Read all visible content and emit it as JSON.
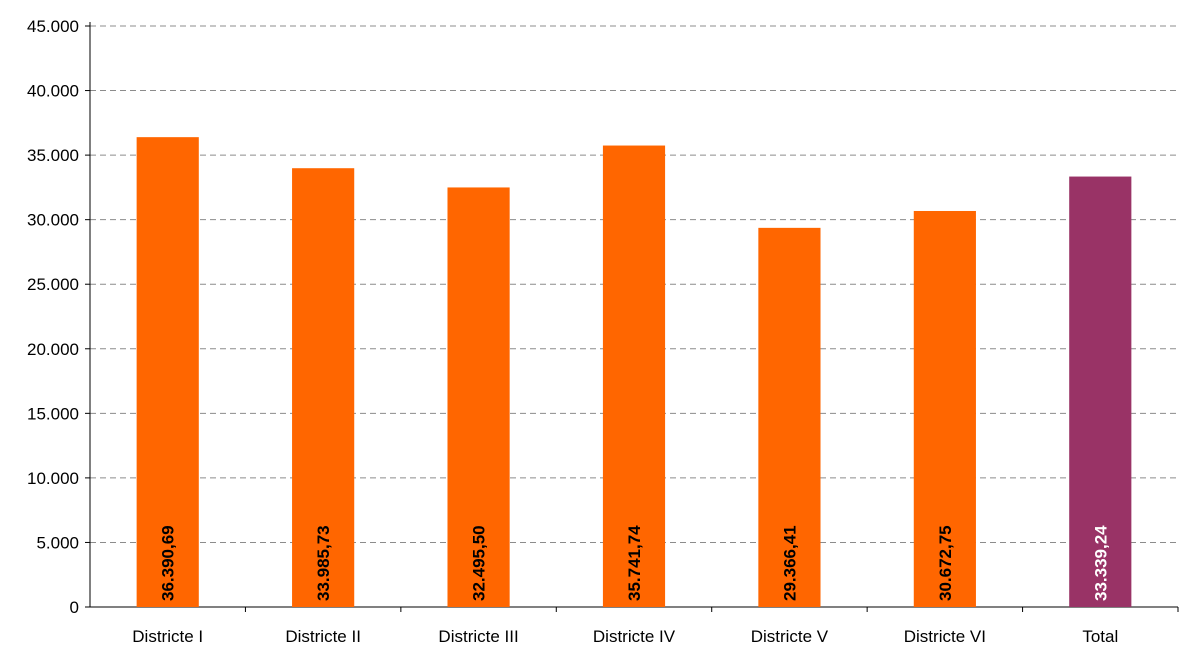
{
  "chart_data": {
    "type": "bar",
    "categories": [
      "Districte I",
      "Districte II",
      "Districte III",
      "Districte IV",
      "Districte V",
      "Districte VI",
      "Total"
    ],
    "values": [
      36390.69,
      33985.73,
      32495.5,
      35741.74,
      29366.41,
      30672.75,
      33339.24
    ],
    "data_labels": [
      "36.390,69",
      "33.985,73",
      "32.495,50",
      "35.741,74",
      "29.366,41",
      "30.672,75",
      "33.339,24"
    ],
    "ylim": [
      0,
      45000
    ],
    "y_ticks": [
      0,
      5000,
      10000,
      15000,
      20000,
      25000,
      30000,
      35000,
      40000,
      45000
    ],
    "y_tick_labels": [
      "0",
      "5.000",
      "10.000",
      "15.000",
      "20.000",
      "25.000",
      "30.000",
      "35.000",
      "40.000",
      "45.000"
    ],
    "grid": true,
    "colors": {
      "bar": "#ff6600",
      "total_bar": "#993366",
      "label_on_bar": "#000000",
      "label_on_total": "#ffffff",
      "grid": "#8c8c8c",
      "axis": "#000000"
    }
  }
}
